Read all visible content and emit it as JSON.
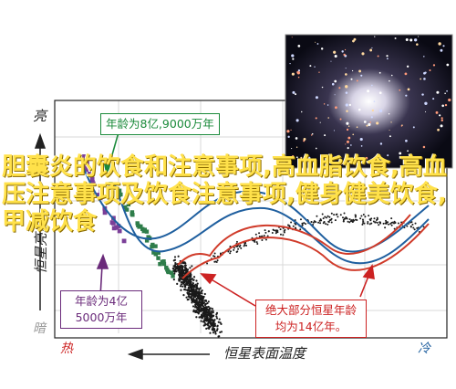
{
  "chart_data": {
    "type": "scatter",
    "title": "",
    "xlabel": "恒星表面温度",
    "ylabel": "恒星亮度",
    "x_left": "热",
    "x_right": "冷",
    "y_top": "亮",
    "y_bottom": "暗",
    "annotations": [
      {
        "text": "年龄为8亿,9000万年",
        "color": "#1a8a3a"
      },
      {
        "text": "年龄为4亿 5000万年",
        "color": "#6a2a7a"
      },
      {
        "text": "绝大部分恒星年龄 均为14亿年。",
        "color": "#cc2222"
      }
    ],
    "series": [
      {
        "name": "",
        "color": "#1a1a1a"
      },
      {
        "name": "",
        "color": "#7b3f98"
      },
      {
        "name": "",
        "color": "#2e7d4a"
      },
      {
        "name": "",
        "color": "#1f5f9f"
      },
      {
        "name": "",
        "color": "#d03b2a"
      }
    ],
    "grid": true
  },
  "overlay": {
    "text": "胆囊炎的饮食和注意事项,高血脂饮食,高血压注意事项及饮食注意事项,健身健美饮食,甲减饮食"
  },
  "colors": {
    "axis": "#222222",
    "grid": "#d8d8d8",
    "overlay_text": "#ffe14a"
  }
}
